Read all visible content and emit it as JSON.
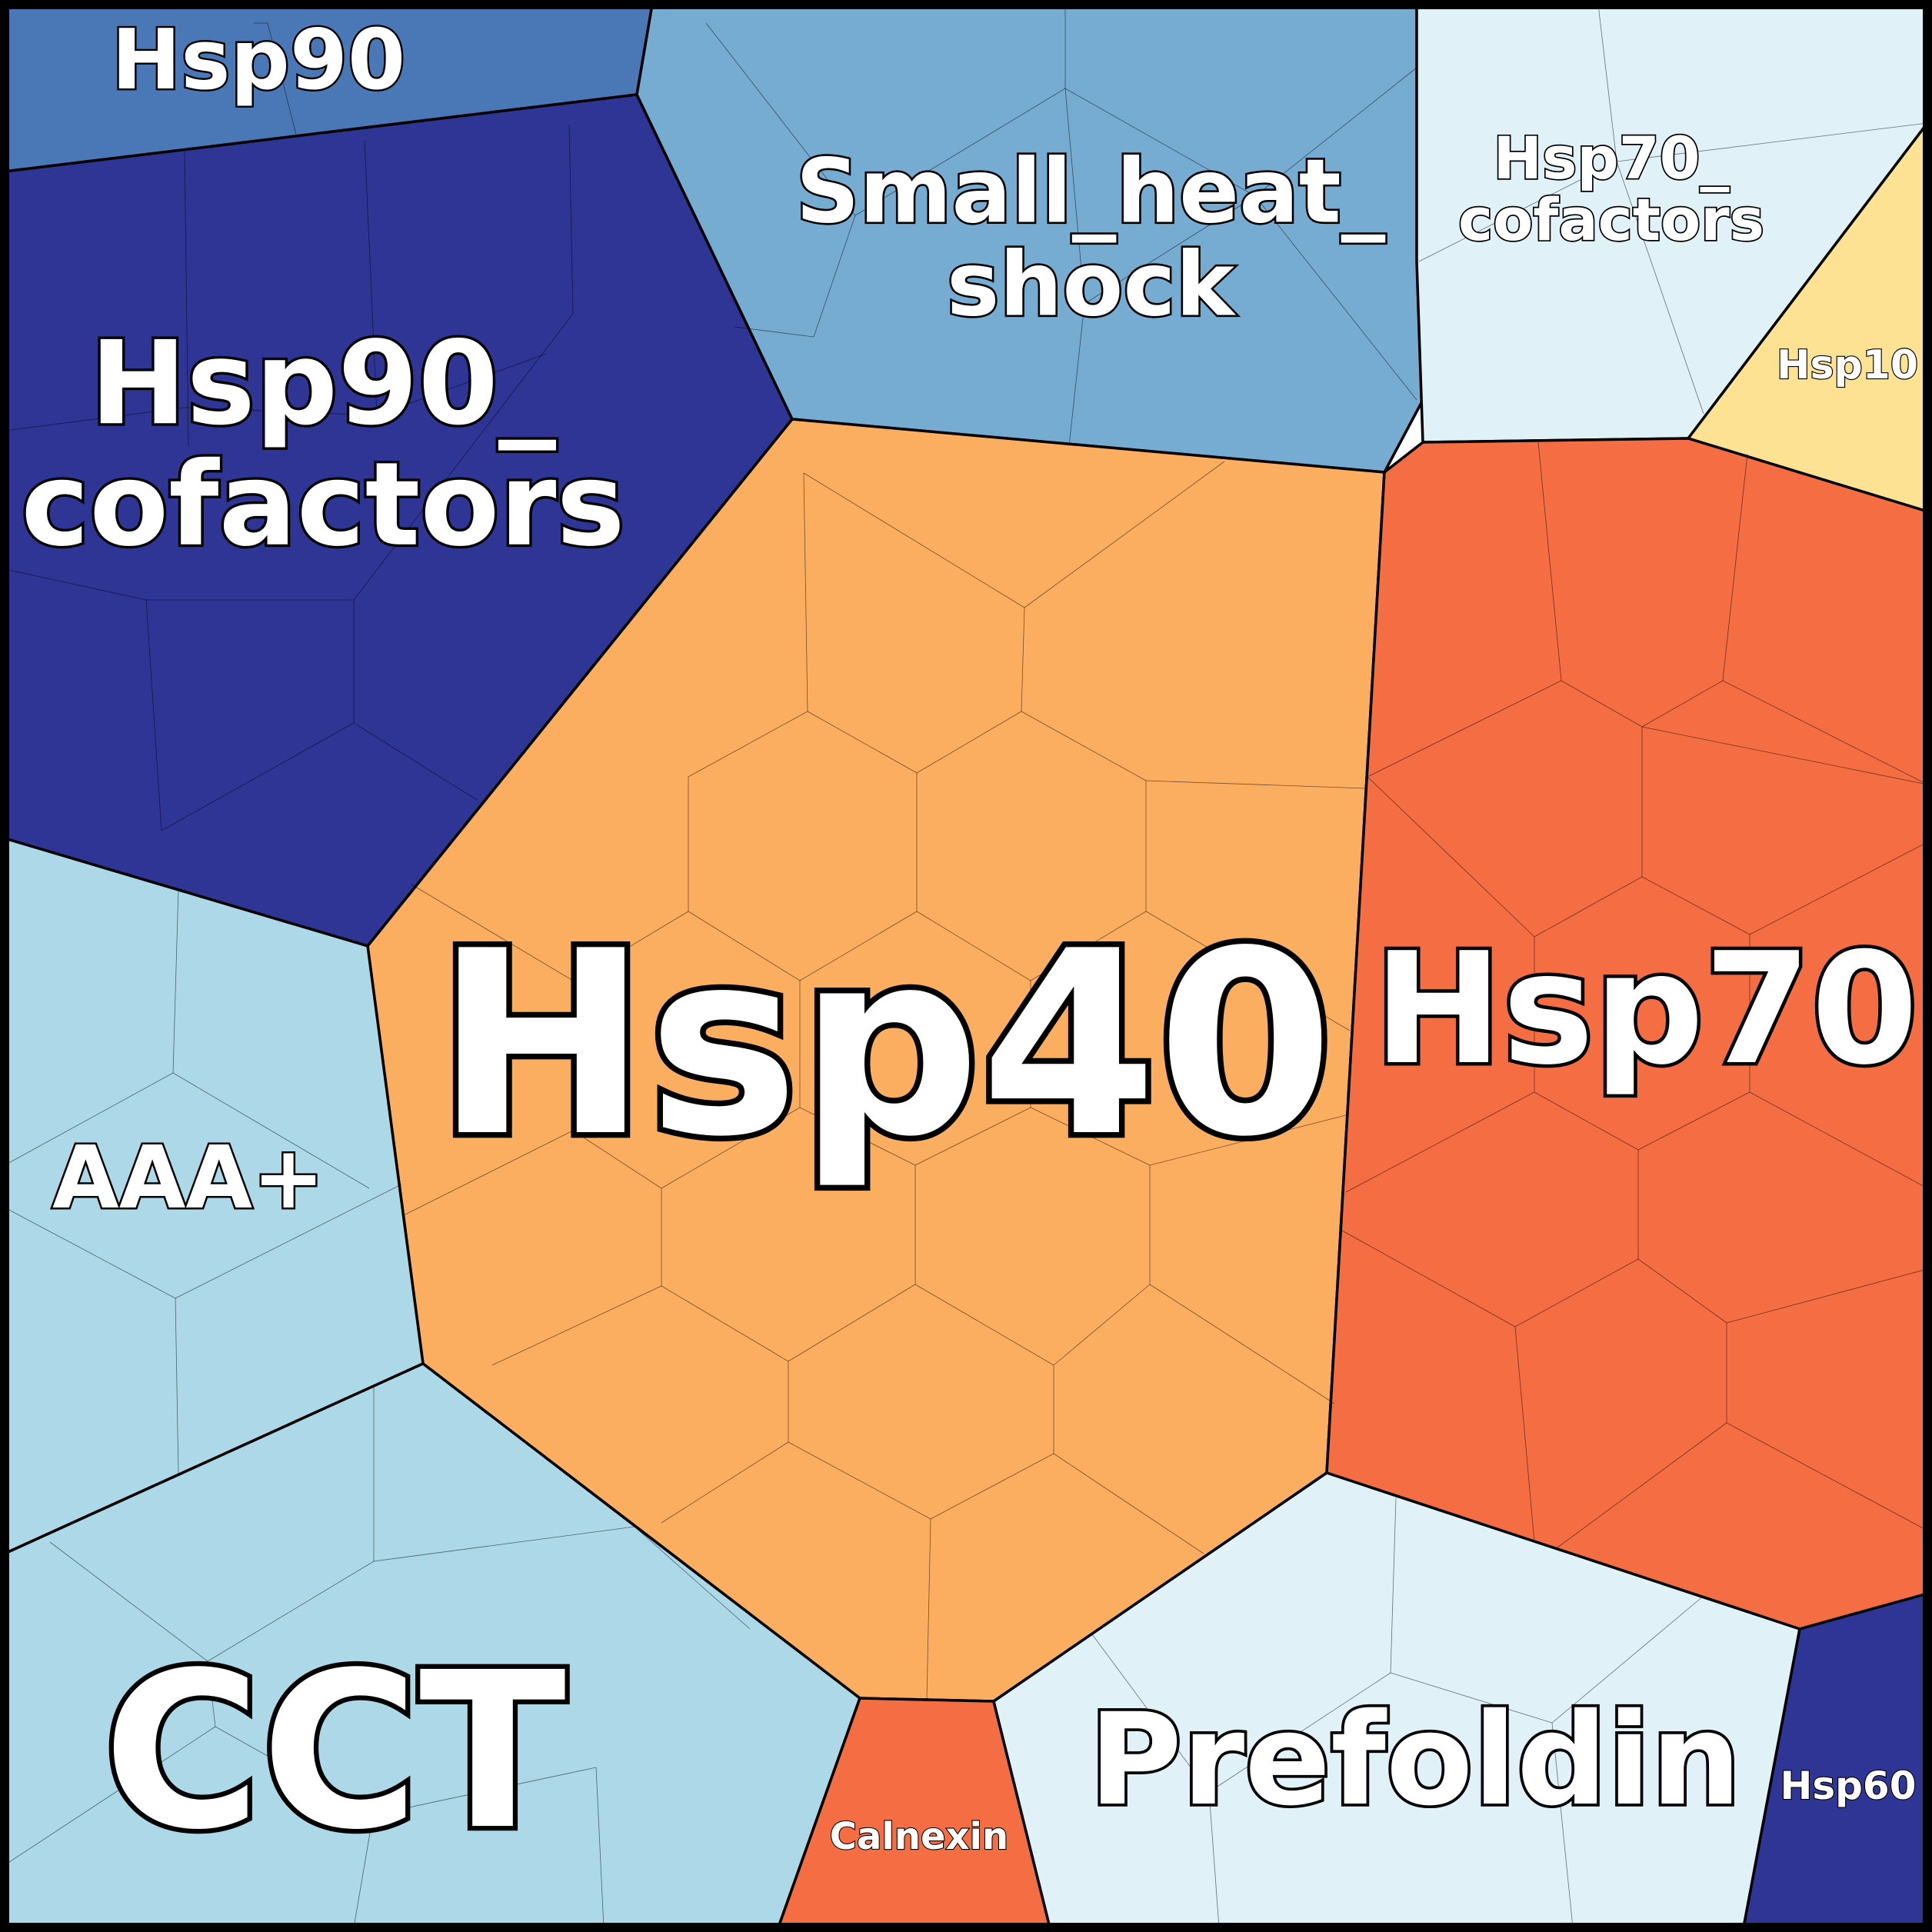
{
  "chart_data": {
    "type": "voronoi-treemap",
    "regions": [
      {
        "id": "hsp90",
        "label": [
          "Hsp90"
        ],
        "color": "#4a78b6"
      },
      {
        "id": "hsp90-cofactors",
        "label": [
          "Hsp90_",
          "cofactors"
        ],
        "color": "#2e3594"
      },
      {
        "id": "small-heat-shock",
        "label": [
          "Small_heat_",
          "shock"
        ],
        "color": "#77acd2"
      },
      {
        "id": "hsp70-cofactors",
        "label": [
          "Hsp70_",
          "cofactors"
        ],
        "color": "#e0f2f8"
      },
      {
        "id": "hsp10",
        "label": [
          "Hsp10"
        ],
        "color": "#fde293"
      },
      {
        "id": "hsp40",
        "label": [
          "Hsp40"
        ],
        "color": "#fcae60"
      },
      {
        "id": "hsp70",
        "label": [
          "Hsp70"
        ],
        "color": "#f46d43"
      },
      {
        "id": "aaa-plus",
        "label": [
          "AAA+"
        ],
        "color": "#acd8e8"
      },
      {
        "id": "cct",
        "label": [
          "CCT"
        ],
        "color": "#acd8e8"
      },
      {
        "id": "calnexin",
        "label": [
          "Calnexin"
        ],
        "color": "#f46d43"
      },
      {
        "id": "prefoldin",
        "label": [
          "Prefoldin"
        ],
        "color": "#e0f2f8"
      },
      {
        "id": "hsp60",
        "label": [
          "Hsp60"
        ],
        "color": "#2e3594"
      }
    ]
  }
}
